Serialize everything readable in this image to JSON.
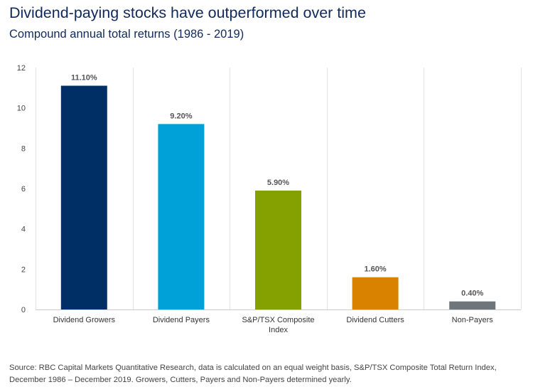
{
  "chart_data": {
    "type": "bar",
    "title": "Dividend-paying stocks have outperformed over time",
    "subtitle": "Compound annual total returns (1986 - 2019)",
    "categories": [
      "Dividend Growers",
      "Dividend Payers",
      "S&P/TSX Composite Index",
      "Dividend Cutters",
      "Non-Payers"
    ],
    "category_lines": [
      [
        "Dividend Growers"
      ],
      [
        "Dividend Payers"
      ],
      [
        "S&P/TSX Composite",
        "Index"
      ],
      [
        "Dividend Cutters"
      ],
      [
        "Non-Payers"
      ]
    ],
    "values": [
      11.1,
      9.2,
      5.9,
      1.6,
      0.4
    ],
    "data_labels": [
      "11.10%",
      "9.20%",
      "5.90%",
      "1.60%",
      "0.40%"
    ],
    "colors": [
      "#002f65",
      "#00a0d8",
      "#84a101",
      "#d98200",
      "#6e757b"
    ],
    "ylim": [
      0,
      12
    ],
    "yticks": [
      0,
      2,
      4,
      6,
      8,
      10,
      12
    ],
    "grid": "vertical separators between categories",
    "xlabel": "",
    "ylabel": ""
  },
  "source": "Source: RBC Capital Markets Quantitative Research, data is calculated on an equal weight basis, S&P/TSX Composite Total Return Index, December 1986 – December 2019. Growers, Cutters, Payers and Non-Payers determined yearly."
}
